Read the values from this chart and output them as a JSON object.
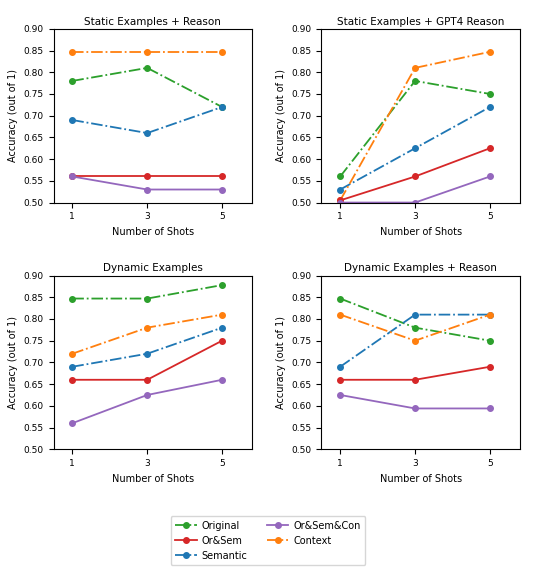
{
  "shots": [
    1,
    3,
    5
  ],
  "subplots": [
    {
      "title": "Static Examples + Reason",
      "series": {
        "Original": [
          0.78,
          0.81,
          0.72
        ],
        "Semantic": [
          0.69,
          0.66,
          0.72
        ],
        "Context": [
          0.847,
          0.847,
          0.847
        ],
        "Or&Sem": [
          0.56,
          0.56,
          0.56
        ],
        "Or&Sem&Con": [
          0.56,
          0.53,
          0.53
        ]
      }
    },
    {
      "title": "Static Examples + GPT4 Reason",
      "series": {
        "Original": [
          0.56,
          0.78,
          0.75
        ],
        "Semantic": [
          0.53,
          0.625,
          0.72
        ],
        "Context": [
          0.505,
          0.81,
          0.847
        ],
        "Or&Sem": [
          0.505,
          0.56,
          0.625
        ],
        "Or&Sem&Con": [
          0.5,
          0.5,
          0.56
        ]
      }
    },
    {
      "title": "Dynamic Examples",
      "series": {
        "Original": [
          0.847,
          0.847,
          0.878
        ],
        "Semantic": [
          0.69,
          0.72,
          0.78
        ],
        "Context": [
          0.72,
          0.78,
          0.81
        ],
        "Or&Sem": [
          0.66,
          0.66,
          0.75
        ],
        "Or&Sem&Con": [
          0.56,
          0.625,
          0.66
        ]
      }
    },
    {
      "title": "Dynamic Examples + Reason",
      "series": {
        "Original": [
          0.847,
          0.78,
          0.75
        ],
        "Semantic": [
          0.69,
          0.81,
          0.81
        ],
        "Context": [
          0.81,
          0.75,
          0.81
        ],
        "Or&Sem": [
          0.66,
          0.66,
          0.69
        ],
        "Or&Sem&Con": [
          0.625,
          0.594,
          0.594
        ]
      }
    }
  ],
  "series_styles": {
    "Original": {
      "color": "#2ca02c",
      "linestyle": "-.",
      "marker": "o"
    },
    "Semantic": {
      "color": "#1f77b4",
      "linestyle": "-.",
      "marker": "o"
    },
    "Context": {
      "color": "#ff7f0e",
      "linestyle": "-.",
      "marker": "o"
    },
    "Or&Sem": {
      "color": "#d62728",
      "linestyle": "-",
      "marker": "o"
    },
    "Or&Sem&Con": {
      "color": "#9467bd",
      "linestyle": "-",
      "marker": "o"
    }
  },
  "ylim": [
    0.5,
    0.9
  ],
  "yticks": [
    0.5,
    0.55,
    0.6,
    0.65,
    0.7,
    0.75,
    0.8,
    0.85,
    0.9
  ],
  "xlabel": "Number of Shots",
  "ylabel": "Accuracy (out of 1)",
  "xticks": [
    1,
    3,
    5
  ],
  "legend_order": [
    "Original",
    "Or&Sem",
    "Semantic",
    "Or&Sem&Con",
    "Context"
  ],
  "figsize": [
    5.36,
    5.76
  ],
  "dpi": 100
}
